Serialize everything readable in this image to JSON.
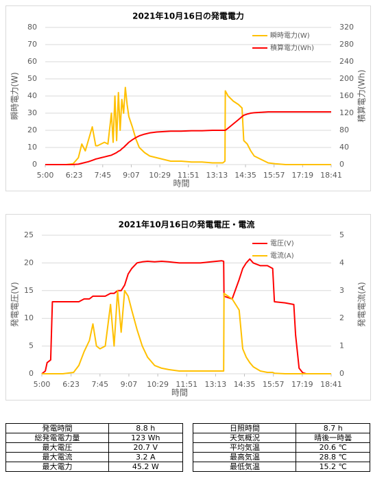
{
  "chart_data": [
    {
      "type": "line",
      "title": "2021年10月16日の発電電力",
      "xlabel": "時間",
      "ylabel": "瞬時電力(W)",
      "y2label": "積算電力(Wh)",
      "xlim": [
        "5:00",
        "18:41"
      ],
      "xticks": [
        "5:00",
        "6:23",
        "7:45",
        "9:07",
        "10:29",
        "11:51",
        "13:13",
        "14:35",
        "15:57",
        "17:19",
        "18:41"
      ],
      "ylim": [
        0,
        80
      ],
      "yticks": [
        0,
        10,
        20,
        30,
        40,
        50,
        60,
        70,
        80
      ],
      "y2lim": [
        0,
        320
      ],
      "y2ticks": [
        0,
        40,
        80,
        120,
        160,
        200,
        240,
        280,
        320
      ],
      "grid": true,
      "legend": "upper right",
      "x": [
        "5:00",
        "6:00",
        "6:20",
        "6:35",
        "6:45",
        "6:55",
        "7:05",
        "7:15",
        "7:25",
        "7:30",
        "7:40",
        "7:50",
        "8:00",
        "8:10",
        "8:15",
        "8:20",
        "8:25",
        "8:30",
        "8:35",
        "8:40",
        "8:45",
        "8:50",
        "8:55",
        "9:00",
        "9:10",
        "9:20",
        "9:30",
        "9:45",
        "10:00",
        "10:20",
        "10:40",
        "11:00",
        "11:30",
        "12:00",
        "12:30",
        "13:00",
        "13:30",
        "13:36",
        "13:37",
        "13:45",
        "14:00",
        "14:15",
        "14:25",
        "14:30",
        "14:40",
        "14:50",
        "15:00",
        "15:20",
        "15:40",
        "16:00",
        "16:30",
        "17:00",
        "18:00",
        "18:41"
      ],
      "series": [
        {
          "name": "瞬時電力(W)",
          "color": "#ffc000",
          "values": [
            0,
            0,
            0.5,
            4,
            12,
            8,
            15,
            22,
            11,
            11,
            12,
            13,
            12,
            30,
            13,
            40,
            14,
            42,
            20,
            38,
            30,
            45,
            35,
            28,
            22,
            15,
            10,
            7,
            5,
            4,
            3,
            2,
            2,
            1.5,
            1.5,
            1,
            1,
            2,
            43,
            40,
            37,
            35,
            33,
            14,
            12,
            8,
            5,
            3,
            1,
            0.5,
            0,
            0,
            0,
            0
          ]
        },
        {
          "name": "積算電力(Wh)",
          "color": "#ff0000",
          "axis": "y2",
          "values": [
            0,
            0,
            0.2,
            1,
            3,
            5,
            7,
            10,
            13,
            14,
            16,
            18,
            20,
            22,
            24,
            26,
            28,
            31,
            33,
            37,
            40,
            44,
            48,
            52,
            58,
            63,
            67,
            71,
            74,
            76,
            77,
            78,
            78,
            79,
            79,
            80,
            80,
            80,
            80,
            85,
            95,
            105,
            112,
            115,
            118,
            120,
            121,
            122,
            123,
            123,
            123,
            123,
            123,
            123
          ]
        }
      ]
    },
    {
      "type": "line",
      "title": "2021年10月16日の発電電圧・電流",
      "xlabel": "時間",
      "ylabel": "発電電圧(V)",
      "y2label": "発電電流(A)",
      "xlim": [
        "5:00",
        "18:41"
      ],
      "xticks": [
        "5:00",
        "6:23",
        "7:45",
        "9:07",
        "10:29",
        "11:51",
        "13:13",
        "14:35",
        "15:57",
        "17:19",
        "18:41"
      ],
      "ylim": [
        0,
        25
      ],
      "yticks": [
        0,
        5,
        10,
        15,
        20,
        25
      ],
      "y2lim": [
        0,
        5
      ],
      "y2ticks": [
        0,
        1,
        2,
        3,
        4,
        5
      ],
      "grid": true,
      "legend": "upper right",
      "x": [
        "5:00",
        "5:10",
        "5:15",
        "5:25",
        "5:30",
        "6:00",
        "6:30",
        "6:45",
        "7:00",
        "7:15",
        "7:25",
        "7:35",
        "7:45",
        "8:00",
        "8:15",
        "8:25",
        "8:35",
        "8:45",
        "8:55",
        "9:05",
        "9:15",
        "9:30",
        "9:45",
        "10:00",
        "10:20",
        "10:40",
        "11:00",
        "11:30",
        "12:00",
        "12:30",
        "13:00",
        "13:30",
        "13:36",
        "13:37",
        "14:00",
        "14:20",
        "14:30",
        "14:40",
        "14:50",
        "15:00",
        "15:20",
        "15:40",
        "15:55",
        "16:00",
        "16:30",
        "16:55",
        "17:00",
        "17:10",
        "17:20",
        "17:30",
        "18:41"
      ],
      "series": [
        {
          "name": "電圧(V)",
          "color": "#ff0000",
          "values": [
            0,
            0.5,
            2,
            2.5,
            13,
            13,
            13,
            13,
            13.5,
            13.5,
            14,
            14,
            14,
            14,
            14.5,
            14.5,
            15,
            15,
            16,
            18,
            19,
            20,
            20.2,
            20.3,
            20.2,
            20.3,
            20.2,
            20,
            20,
            20,
            20.2,
            20.4,
            20.3,
            14,
            13.5,
            17,
            19,
            20,
            20.7,
            20,
            19.5,
            19.5,
            19,
            13,
            12.8,
            12.5,
            7,
            1,
            0.2,
            0,
            0
          ]
        },
        {
          "name": "電流(A)",
          "color": "#ffc000",
          "axis": "y2",
          "values": [
            0,
            0,
            0,
            0,
            0,
            0,
            0.05,
            0.3,
            0.8,
            1.2,
            1.8,
            1,
            0.9,
            1,
            2.5,
            1,
            3,
            1.5,
            3,
            2.8,
            2.3,
            1.6,
            1,
            0.6,
            0.3,
            0.2,
            0.15,
            0.1,
            0.1,
            0.1,
            0.1,
            0.1,
            0.1,
            2.9,
            2.7,
            2.3,
            0.9,
            0.6,
            0.4,
            0.25,
            0.1,
            0.05,
            0.05,
            0.02,
            0,
            0,
            0,
            0,
            0,
            0,
            0
          ]
        }
      ]
    }
  ],
  "table": {
    "rows": [
      [
        "発電時間",
        "8.8 h",
        "日照時間",
        "8.7 h"
      ],
      [
        "総発電電力量",
        "123 Wh",
        "天気概況",
        "晴後一時曇"
      ],
      [
        "最大電圧",
        "20.7 V",
        "平均気温",
        "20.6 ℃"
      ],
      [
        "最大電流",
        "3.2 A",
        "最高気温",
        "28.8 ℃"
      ],
      [
        "最大電力",
        "45.2 W",
        "最低気温",
        "15.2 ℃"
      ]
    ]
  }
}
